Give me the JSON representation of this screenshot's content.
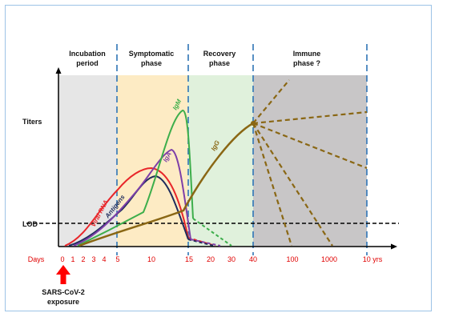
{
  "phases": [
    {
      "line1": "Incubation",
      "line2": "period",
      "color": "#e6e6e6"
    },
    {
      "line1": "Symptomatic",
      "line2": "phase",
      "color": "#fdebc4"
    },
    {
      "line1": "Recovery",
      "line2": "phase",
      "color": "#e0f1dc"
    },
    {
      "line1": "Immune",
      "line2": "phase ?",
      "color": "#c8c6c7"
    }
  ],
  "y_axis_label": "Titers",
  "lod_label": "LOD",
  "x_axis_title": "Days",
  "x_ticks": [
    "0",
    "1",
    "2",
    "3",
    "4",
    "5",
    "10",
    "15",
    "20",
    "30",
    "40",
    "100",
    "1000",
    "10 yrs"
  ],
  "exposure": {
    "line1": "SARS-CoV-2",
    "line2": "exposure"
  },
  "curves": [
    {
      "name": "Viral RNA",
      "color": "#e8262a"
    },
    {
      "name": "Antigens",
      "color": "#1f2c5c"
    },
    {
      "name": "IgA",
      "color": "#7d3fa8"
    },
    {
      "name": "IgM",
      "color": "#3dae4b"
    },
    {
      "name": "IgG",
      "color": "#8a6714"
    }
  ]
}
